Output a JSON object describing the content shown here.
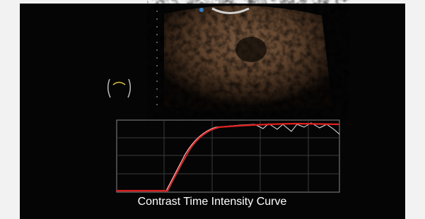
{
  "caption": "Contrast Time Intensity Curve"
}
